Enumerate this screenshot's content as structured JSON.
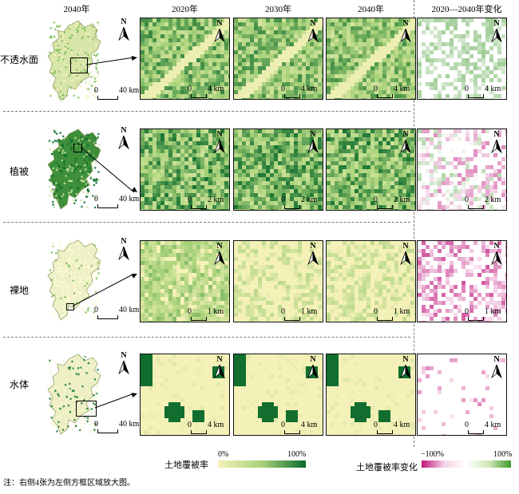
{
  "headers": {
    "overview": "2040年",
    "y2020": "2020年",
    "y2030": "2030年",
    "y2040": "2040年",
    "change": "2020—2040年变化"
  },
  "rows": [
    {
      "label": "不透水面",
      "zoom_km": "4 km",
      "overview_km": "40 km"
    },
    {
      "label": "植被",
      "zoom_km": "2 km",
      "overview_km": "40 km"
    },
    {
      "label": "裸地",
      "zoom_km": "1 km",
      "overview_km": "40 km"
    },
    {
      "label": "水体",
      "zoom_km": "4 km",
      "overview_km": "40 km"
    }
  ],
  "scale_zero": "0",
  "north_label": "N",
  "legend": {
    "cover_title": "土地覆被率",
    "cover_min": "0%",
    "cover_max": "100%",
    "change_title": "土地覆被率变化",
    "change_min": "−100%",
    "change_max": "100%"
  },
  "colors": {
    "low": "#f4f1b8",
    "high": "#0b6a2c",
    "neg": "#c0127a",
    "pos": "#3f9a2b"
  },
  "footnote": "注：右侧4张为左侧方框区域放大图。"
}
